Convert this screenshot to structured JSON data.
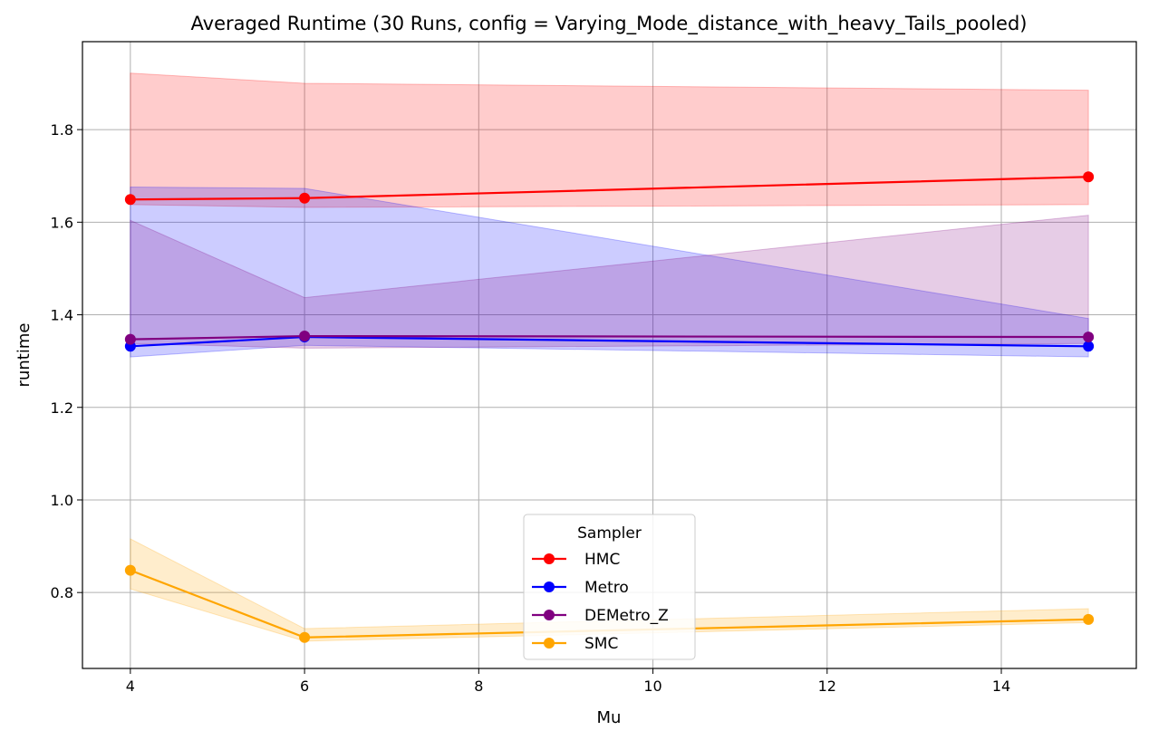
{
  "chart_data": {
    "type": "line",
    "title": "Averaged Runtime (30 Runs, config = Varying_Mode_distance_with_heavy_Tails_pooled)",
    "xlabel": "Mu",
    "ylabel": "runtime",
    "x": [
      4,
      6,
      15
    ],
    "xlim": [
      3.45,
      15.55
    ],
    "ylim": [
      0.636,
      1.99
    ],
    "xticks": [
      "4",
      "6",
      "8",
      "10",
      "12",
      "14"
    ],
    "yticks": [
      "0.8",
      "1.0",
      "1.2",
      "1.4",
      "1.6",
      "1.8"
    ],
    "grid": true,
    "legend": {
      "title": "Sampler",
      "position": "lower center"
    },
    "series": [
      {
        "name": "HMC",
        "color": "#ff0000",
        "values": [
          1.649,
          1.652,
          1.698
        ],
        "band_lower": [
          1.638,
          1.632,
          1.638
        ],
        "band_upper": [
          1.922,
          1.9,
          1.885
        ]
      },
      {
        "name": "Metro",
        "color": "#0000ff",
        "values": [
          1.332,
          1.352,
          1.332
        ],
        "band_lower": [
          1.309,
          1.334,
          1.309
        ],
        "band_upper": [
          1.676,
          1.673,
          1.392
        ]
      },
      {
        "name": "DEMetro_Z",
        "color": "#800080",
        "values": [
          1.347,
          1.354,
          1.352
        ],
        "band_lower": [
          1.338,
          1.328,
          1.338
        ],
        "band_upper": [
          1.604,
          1.437,
          1.615
        ]
      },
      {
        "name": "SMC",
        "color": "#ffa500",
        "values": [
          0.848,
          0.703,
          0.742
        ],
        "band_lower": [
          0.808,
          0.695,
          0.735
        ],
        "band_upper": [
          0.916,
          0.722,
          0.765
        ]
      }
    ]
  }
}
